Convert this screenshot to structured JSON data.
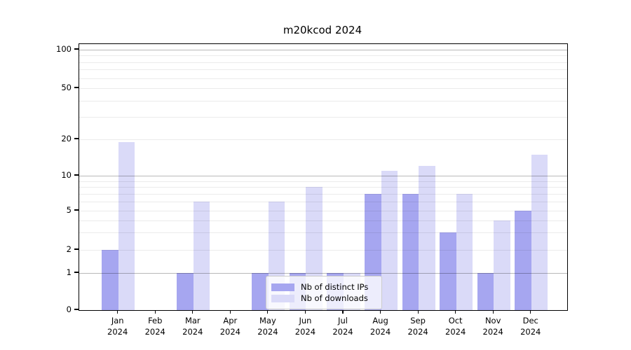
{
  "title": "m20kcod 2024",
  "chart_data": {
    "type": "bar",
    "title": "m20kcod 2024",
    "categories": [
      "Jan",
      "Feb",
      "Mar",
      "Apr",
      "May",
      "Jun",
      "Jul",
      "Aug",
      "Sep",
      "Oct",
      "Nov",
      "Dec"
    ],
    "year_label": "2024",
    "series": [
      {
        "name": "Nb of distinct IPs",
        "color": "#a6a6f0",
        "values": [
          2,
          0,
          1,
          0,
          1,
          1,
          1,
          7,
          7,
          3,
          1,
          5
        ]
      },
      {
        "name": "Nb of downloads",
        "color": "#dadaf8",
        "values": [
          19,
          0,
          6,
          0,
          6,
          8,
          1,
          11,
          12,
          7,
          4,
          15
        ]
      }
    ],
    "yscale": "symlog",
    "yticks": [
      0,
      1,
      2,
      5,
      10,
      20,
      50,
      100
    ],
    "ytick_labels": [
      "0",
      "1",
      "2",
      "5",
      "10",
      "20",
      "50",
      "100"
    ],
    "minor_gridlines": [
      2,
      3,
      4,
      5,
      6,
      7,
      8,
      9,
      20,
      30,
      40,
      50,
      60,
      70,
      80,
      90
    ],
    "major_gridlines": [
      1,
      10,
      100
    ],
    "ylim": [
      0,
      111
    ],
    "grid": "horizontal",
    "legend_position": "lower center"
  }
}
